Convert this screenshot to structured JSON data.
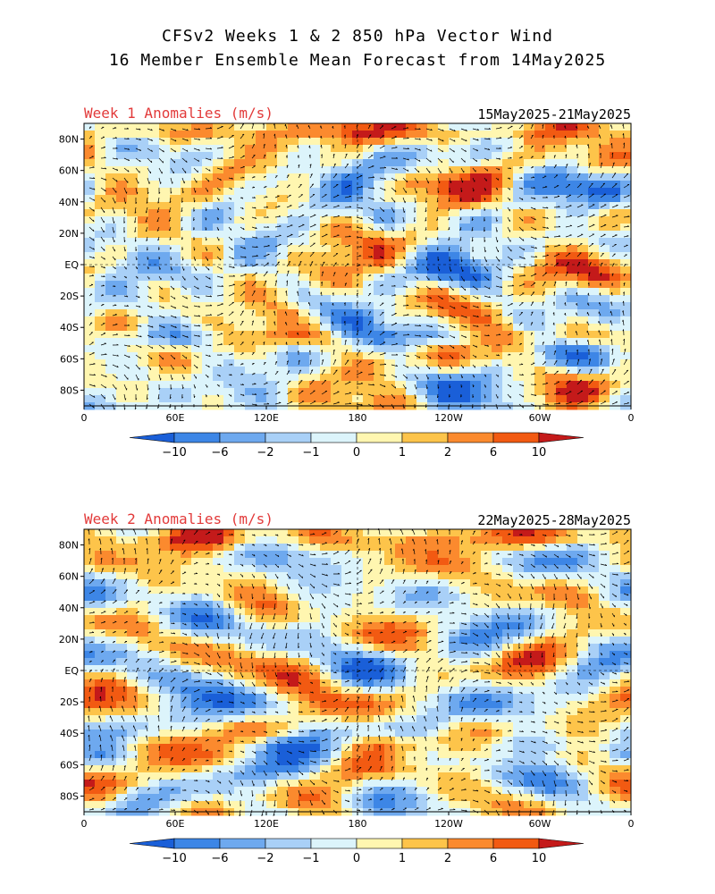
{
  "header": {
    "line1": "CFSv2 Weeks 1 & 2 850 hPa Vector Wind",
    "line2": "16 Member Ensemble Mean Forecast from 14May2025"
  },
  "panels": [
    {
      "left_title": "Week 1 Anomalies (m/s)",
      "right_title": "15May2025-21May2025",
      "lat_labels": [
        "80N",
        "60N",
        "40N",
        "20N",
        "EQ",
        "20S",
        "40S",
        "60S",
        "80S"
      ],
      "lon_labels": [
        "0",
        "60E",
        "120E",
        "180",
        "120W",
        "60W",
        "0"
      ]
    },
    {
      "left_title": "Week 2 Anomalies (m/s)",
      "right_title": "22May2025-28May2025",
      "lat_labels": [
        "80N",
        "60N",
        "40N",
        "20N",
        "EQ",
        "20S",
        "40S",
        "60S",
        "80S"
      ],
      "lon_labels": [
        "0",
        "60E",
        "120E",
        "180",
        "120W",
        "60W",
        "0"
      ]
    }
  ],
  "colorbar": {
    "labels": [
      "-10",
      "-6",
      "-2",
      "-1",
      "0",
      "1",
      "2",
      "6",
      "10"
    ],
    "colors": [
      "#1a5fd8",
      "#3d86e6",
      "#6ea9ef",
      "#a9d0f7",
      "#dcf4fb",
      "#fff6b0",
      "#fdc44a",
      "#fb8a2e",
      "#f25a12",
      "#c41a1a"
    ]
  }
}
